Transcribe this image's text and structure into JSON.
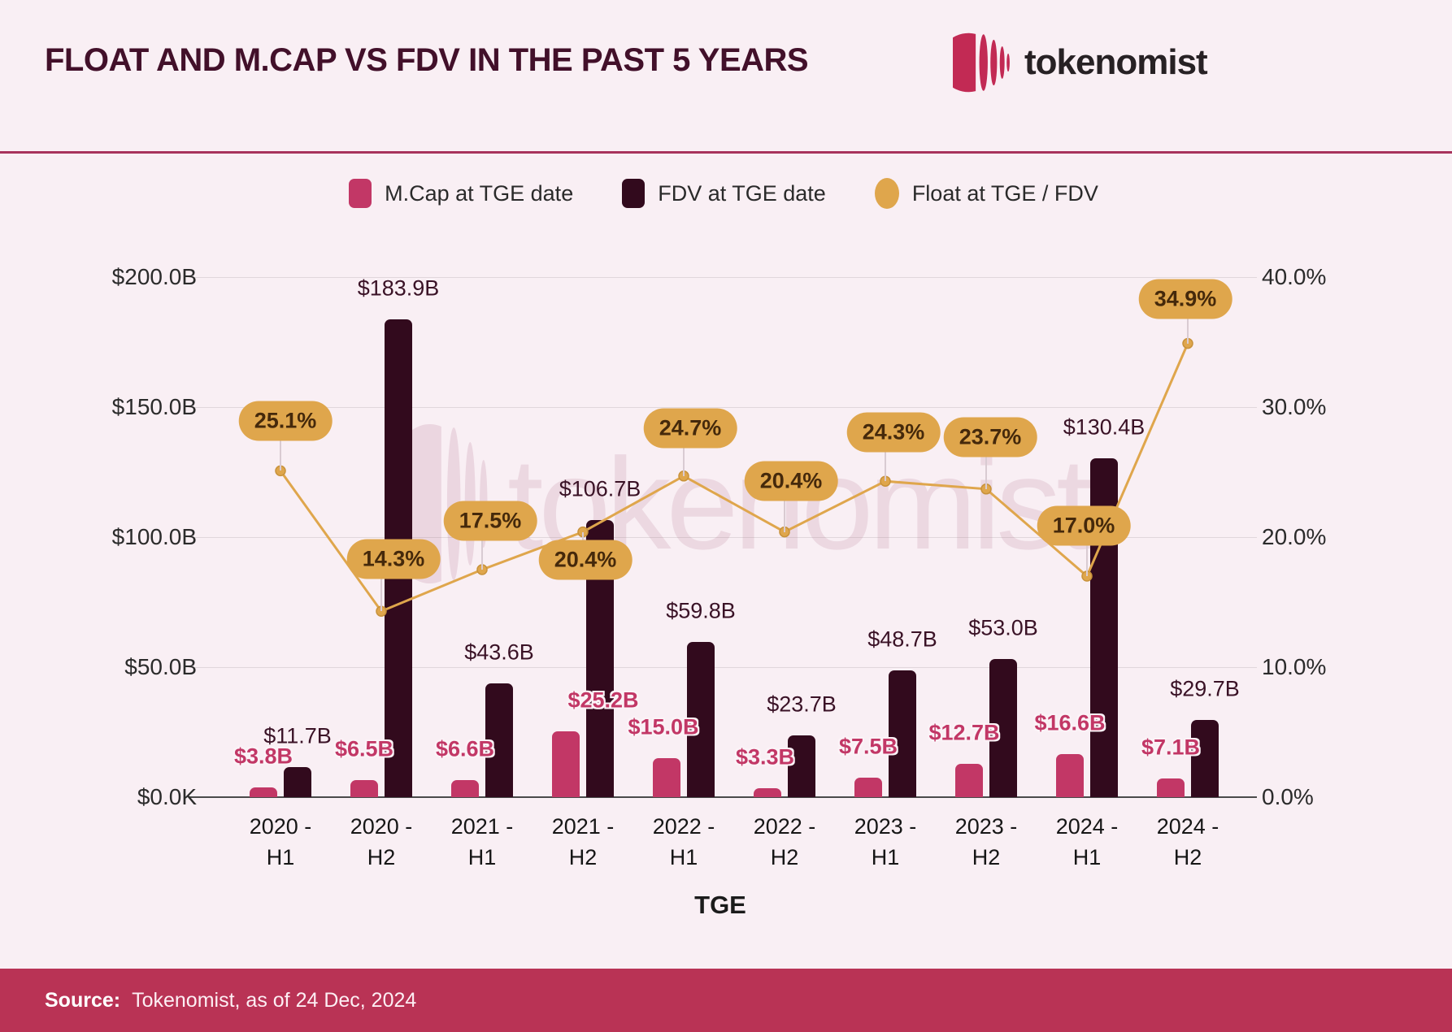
{
  "header": {
    "title": "FLOAT AND M.CAP VS FDV IN THE PAST 5 YEARS",
    "brand": "tokenomist"
  },
  "legend": {
    "items": [
      {
        "label": "M.Cap at TGE date",
        "color": "#C23766",
        "shape": "square"
      },
      {
        "label": "FDV at TGE date",
        "color": "#320A1D",
        "shape": "square"
      },
      {
        "label": "Float at TGE / FDV",
        "color": "#DFA64C",
        "shape": "circle"
      }
    ]
  },
  "chart_data": {
    "type": "combo-bar-line",
    "title": "FLOAT AND M.CAP VS FDV IN THE PAST 5 YEARS",
    "xlabel": "TGE",
    "watermark": "tokenomist",
    "grid": true,
    "categories": [
      {
        "line1": "2020 -",
        "line2": "H1"
      },
      {
        "line1": "2020 -",
        "line2": "H2"
      },
      {
        "line1": "2021 -",
        "line2": "H1"
      },
      {
        "line1": "2021 -",
        "line2": "H2"
      },
      {
        "line1": "2022 -",
        "line2": "H1"
      },
      {
        "line1": "2022 -",
        "line2": "H2"
      },
      {
        "line1": "2023 -",
        "line2": "H1"
      },
      {
        "line1": "2023 -",
        "line2": "H2"
      },
      {
        "line1": "2024 -",
        "line2": "H1"
      },
      {
        "line1": "2024 -",
        "line2": "H2"
      }
    ],
    "left_axis": {
      "unit": "USD billions",
      "ticks": [
        "$200.0B",
        "$150.0B",
        "$100.0B",
        "$50.0B",
        "$0.0K"
      ],
      "ylim": [
        0,
        200
      ]
    },
    "right_axis": {
      "unit": "percent",
      "ticks": [
        "40.0%",
        "30.0%",
        "20.0%",
        "10.0%",
        "0.0%"
      ],
      "ylim": [
        0,
        40
      ]
    },
    "series": [
      {
        "name": "M.Cap at TGE date",
        "type": "bar",
        "color": "#C23766",
        "values": [
          3.8,
          6.5,
          6.6,
          25.2,
          15.0,
          3.3,
          7.5,
          12.7,
          16.6,
          7.1
        ],
        "labels": [
          "$3.8B",
          "$6.5B",
          "$6.6B",
          "$25.2B",
          "$15.0B",
          "$3.3B",
          "$7.5B",
          "$12.7B",
          "$16.6B",
          "$7.1B"
        ]
      },
      {
        "name": "FDV at TGE date",
        "type": "bar",
        "color": "#320A1D",
        "values": [
          11.7,
          183.9,
          43.6,
          106.7,
          59.8,
          23.7,
          48.7,
          53.0,
          130.4,
          29.7
        ],
        "labels": [
          "$11.7B",
          "$183.9B",
          "$43.6B",
          "$106.7B",
          "$59.8B",
          "$23.7B",
          "$48.7B",
          "$53.0B",
          "$130.4B",
          "$29.7B"
        ]
      },
      {
        "name": "Float at TGE / FDV",
        "type": "line",
        "color": "#DFA64C",
        "values": [
          25.1,
          14.3,
          17.5,
          20.4,
          24.7,
          20.4,
          24.3,
          23.7,
          17.0,
          34.9
        ],
        "labels": [
          "25.1%",
          "14.3%",
          "17.5%",
          "20.4%",
          "24.7%",
          "20.4%",
          "24.3%",
          "23.7%",
          "17.0%",
          "34.9%"
        ]
      }
    ]
  },
  "source": {
    "label": "Source:",
    "text": "Tokenomist, as of 24 Dec, 2024"
  }
}
